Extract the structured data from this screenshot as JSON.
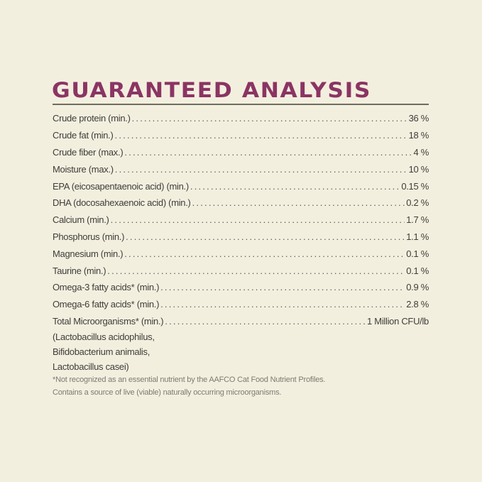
{
  "title": "Guaranteed Analysis",
  "rows": [
    {
      "label": "Crude protein (min.)",
      "value": "36 %"
    },
    {
      "label": "Crude fat (min.)",
      "value": "18 %"
    },
    {
      "label": "Crude fiber (max.)",
      "value": "4 %"
    },
    {
      "label": "Moisture (max.)",
      "value": "10 %"
    },
    {
      "label": "EPA (eicosapentaenoic acid) (min.)",
      "value": "0.15 %"
    },
    {
      "label": "DHA (docosahexaenoic acid) (min.)",
      "value": "0.2 %"
    },
    {
      "label": "Calcium (min.)",
      "value": "1.7 %"
    },
    {
      "label": "Phosphorus (min.)",
      "value": "1.1 %"
    },
    {
      "label": "Magnesium (min.)",
      "value": "0.1 %"
    },
    {
      "label": "Taurine (min.)",
      "value": "0.1 %"
    },
    {
      "label": "Omega-3 fatty acids* (min.)",
      "value": "0.9 %"
    },
    {
      "label": "Omega-6 fatty acids* (min.)",
      "value": "2.8 %"
    },
    {
      "label": "Total Microorganisms* (min.)",
      "value": "1 Million CFU/lb"
    }
  ],
  "microorganisms": [
    "(Lactobacillus acidophilus,",
    "Bifidobacterium animalis,",
    "Lactobacillus casei)"
  ],
  "footnotes": [
    "*Not recognized as an essential nutrient by the AAFCO Cat Food Nutrient Profiles.",
    "Contains a source of live (viable) naturally occurring microorganisms."
  ],
  "colors": {
    "title": "#8b3463",
    "background": "#f3efdf",
    "text": "#3e3d38"
  }
}
